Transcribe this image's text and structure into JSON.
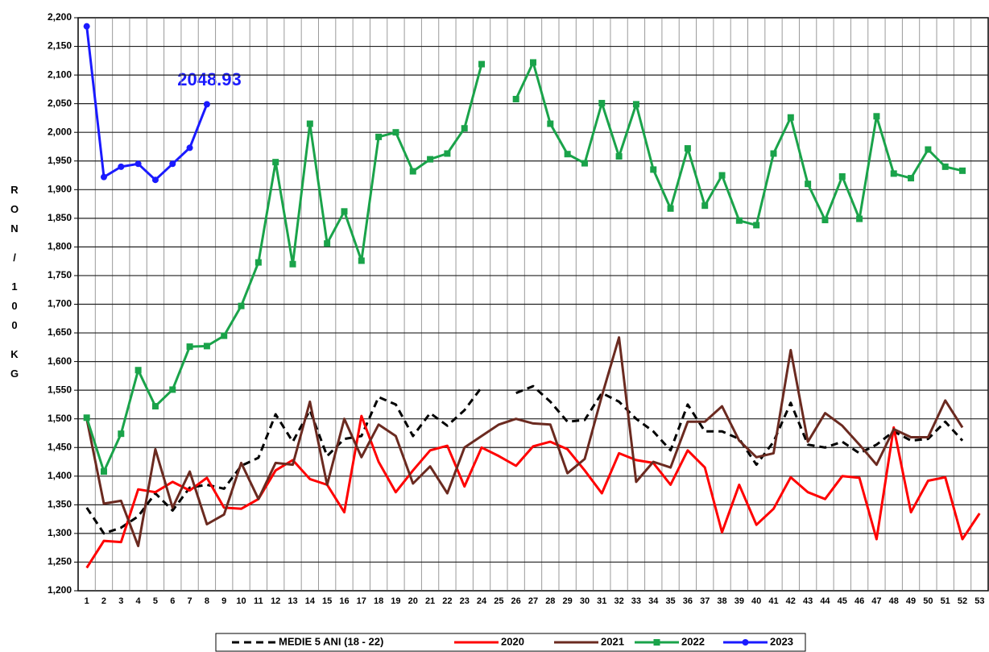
{
  "chart_data": {
    "type": "line",
    "y_label": "RON / 100 KG",
    "annotation": "2048.93",
    "categories": [
      "1",
      "2",
      "3",
      "4",
      "5",
      "6",
      "7",
      "8",
      "9",
      "10",
      "11",
      "12",
      "13",
      "14",
      "15",
      "16",
      "17",
      "18",
      "19",
      "20",
      "21",
      "22",
      "23",
      "24",
      "25",
      "26",
      "27",
      "28",
      "29",
      "30",
      "31",
      "32",
      "33",
      "34",
      "35",
      "36",
      "37",
      "38",
      "39",
      "40",
      "41",
      "42",
      "43",
      "44",
      "45",
      "46",
      "47",
      "48",
      "49",
      "50",
      "51",
      "52",
      "53"
    ],
    "ylim": [
      1200,
      2200
    ],
    "yticks": [
      {
        "value": 1200,
        "label": "1,200"
      },
      {
        "value": 1250,
        "label": "1,250"
      },
      {
        "value": 1300,
        "label": "1,300"
      },
      {
        "value": 1350,
        "label": "1,350"
      },
      {
        "value": 1400,
        "label": "1,400"
      },
      {
        "value": 1450,
        "label": "1,450"
      },
      {
        "value": 1500,
        "label": "1,500"
      },
      {
        "value": 1550,
        "label": "1,550"
      },
      {
        "value": 1600,
        "label": "1,600"
      },
      {
        "value": 1650,
        "label": "1,650"
      },
      {
        "value": 1700,
        "label": "1,700"
      },
      {
        "value": 1750,
        "label": "1,750"
      },
      {
        "value": 1800,
        "label": "1,800"
      },
      {
        "value": 1850,
        "label": "1,850"
      },
      {
        "value": 1900,
        "label": "1,900"
      },
      {
        "value": 1950,
        "label": "1,950"
      },
      {
        "value": 2000,
        "label": "2,000"
      },
      {
        "value": 2050,
        "label": "2,050"
      },
      {
        "value": 2100,
        "label": "2,100"
      },
      {
        "value": 2150,
        "label": "2,150"
      },
      {
        "value": 2200,
        "label": "2,200"
      }
    ],
    "grid": true,
    "series": [
      {
        "name": "MEDIE 5 ANI (18 - 22)",
        "color": "#000000",
        "dashed": true,
        "values": [
          1345,
          1300,
          1310,
          1330,
          1370,
          1340,
          1380,
          1385,
          1378,
          1418,
          1432,
          1508,
          1460,
          1515,
          1435,
          1465,
          1470,
          1538,
          1525,
          1470,
          1510,
          1488,
          1515,
          1555,
          null,
          1545,
          1557,
          1530,
          1495,
          1498,
          1545,
          1530,
          1500,
          1478,
          1445,
          1525,
          1478,
          1478,
          1465,
          1420,
          1460,
          1528,
          1455,
          1450,
          1460,
          1440,
          1455,
          1478,
          1462,
          1465,
          1495,
          1462,
          null
        ]
      },
      {
        "name": "2020",
        "color": "#ff0000",
        "values": [
          1240,
          1287,
          1285,
          1377,
          1372,
          1390,
          1375,
          1397,
          1345,
          1343,
          1360,
          1410,
          1428,
          1395,
          1385,
          1337,
          1505,
          1425,
          1372,
          1410,
          1445,
          1453,
          1382,
          1450,
          1435,
          1418,
          1452,
          1460,
          1447,
          1410,
          1370,
          1440,
          1428,
          1423,
          1385,
          1445,
          1415,
          1302,
          1385,
          1315,
          1343,
          1398,
          1372,
          1360,
          1400,
          1397,
          1290,
          1485,
          1337,
          1392,
          1398,
          1290,
          1335
        ]
      },
      {
        "name": "2021",
        "color": "#6b2a20",
        "values": [
          1500,
          1352,
          1357,
          1278,
          1447,
          1345,
          1408,
          1316,
          1333,
          1423,
          1360,
          1423,
          1420,
          1530,
          1385,
          1500,
          1433,
          1490,
          1470,
          1387,
          1417,
          1370,
          1450,
          1470,
          1490,
          1500,
          1492,
          1490,
          1405,
          1430,
          1540,
          1642,
          1390,
          1425,
          1415,
          1495,
          1495,
          1522,
          1462,
          1433,
          1440,
          1620,
          1460,
          1510,
          1488,
          1455,
          1420,
          1482,
          1468,
          1468,
          1532,
          1485,
          null
        ]
      },
      {
        "name": "2022",
        "color": "#1aa34a",
        "marker": "square",
        "values": [
          1502,
          1408,
          1474,
          1585,
          1522,
          1551,
          1626,
          1627,
          1645,
          1697,
          1773,
          1948,
          1770,
          2015,
          1806,
          1862,
          1776,
          1992,
          2000,
          1932,
          1953,
          1963,
          2007,
          2119,
          null,
          2058,
          2122,
          2015,
          1962,
          1946,
          2051,
          1958,
          2049,
          1935,
          1867,
          1972,
          1872,
          1925,
          1846,
          1838,
          1963,
          2026,
          1910,
          1847,
          1923,
          1849,
          2028,
          1928,
          1920,
          1970,
          1940,
          1933,
          null
        ]
      },
      {
        "name": "2023",
        "color": "#1a1aff",
        "marker": "circle",
        "values": [
          2185,
          1922,
          1940,
          1945,
          1917,
          1945,
          1973,
          2049,
          null,
          null,
          null,
          null,
          null,
          null,
          null,
          null,
          null,
          null,
          null,
          null,
          null,
          null,
          null,
          null,
          null,
          null,
          null,
          null,
          null,
          null,
          null,
          null,
          null,
          null,
          null,
          null,
          null,
          null,
          null,
          null,
          null,
          null,
          null,
          null,
          null,
          null,
          null,
          null,
          null,
          null,
          null,
          null,
          null
        ]
      }
    ]
  }
}
